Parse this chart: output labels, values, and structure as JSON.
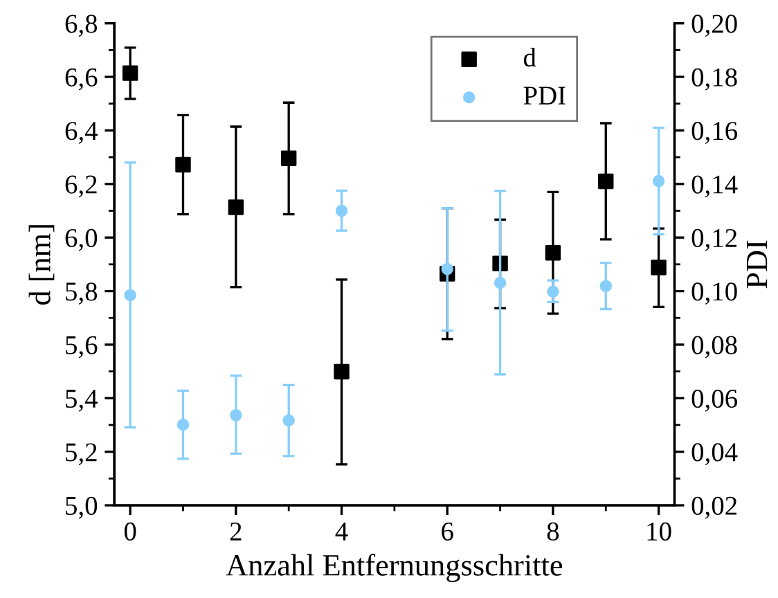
{
  "chart_data": {
    "type": "scatter",
    "xlabel": "Anzahl Entfernungsschritte",
    "ylabel": "d [nm]",
    "y2label": "PDI",
    "x": [
      0,
      1,
      2,
      3,
      4,
      6,
      7,
      8,
      9,
      10
    ],
    "series": [
      {
        "name": "d",
        "color": "#000000",
        "marker": "square",
        "values": [
          6.614,
          6.272,
          6.113,
          6.296,
          5.499,
          5.865,
          5.903,
          5.943,
          6.21,
          5.888
        ],
        "errors": [
          [
            6.518,
            6.709
          ],
          [
            6.087,
            6.457
          ],
          [
            5.815,
            6.414
          ],
          [
            6.087,
            6.504
          ],
          [
            5.153,
            5.843
          ],
          [
            5.621,
            6.11
          ],
          [
            5.736,
            6.067
          ],
          [
            5.716,
            6.17
          ],
          [
            5.993,
            6.427
          ],
          [
            5.741,
            6.034
          ]
        ]
      },
      {
        "name": "PDI",
        "color": "#87cefa",
        "marker": "circle",
        "axis": "y2",
        "values": [
          0.0985,
          0.0501,
          0.0537,
          0.0517,
          0.13,
          0.1083,
          0.1031,
          0.0998,
          0.1019,
          0.1411
        ],
        "errors": [
          [
            0.0491,
            0.148
          ],
          [
            0.0374,
            0.0628
          ],
          [
            0.0393,
            0.0684
          ],
          [
            0.0384,
            0.0649
          ],
          [
            0.1226,
            0.1375
          ],
          [
            0.0852,
            0.131
          ],
          [
            0.0689,
            0.1374
          ],
          [
            0.0959,
            0.104
          ],
          [
            0.0933,
            0.1105
          ],
          [
            0.1212,
            0.161
          ]
        ]
      }
    ],
    "xlim": [
      -0.3,
      10.3
    ],
    "xticks": [
      0,
      2,
      4,
      6,
      8,
      10
    ],
    "ylim": [
      5.0,
      6.8
    ],
    "yticks": [
      {
        "value": 5.0,
        "label": "5,0"
      },
      {
        "value": 5.2,
        "label": "5,2"
      },
      {
        "value": 5.4,
        "label": "5,4"
      },
      {
        "value": 5.6,
        "label": "5,6"
      },
      {
        "value": 5.8,
        "label": "5,8"
      },
      {
        "value": 6.0,
        "label": "6,0"
      },
      {
        "value": 6.2,
        "label": "6,2"
      },
      {
        "value": 6.4,
        "label": "6,4"
      },
      {
        "value": 6.6,
        "label": "6,6"
      },
      {
        "value": 6.8,
        "label": "6,8"
      }
    ],
    "y2lim": [
      0.02,
      0.2
    ],
    "y2ticks": [
      {
        "value": 0.02,
        "label": "0,02"
      },
      {
        "value": 0.04,
        "label": "0,04"
      },
      {
        "value": 0.06,
        "label": "0,06"
      },
      {
        "value": 0.08,
        "label": "0,08"
      },
      {
        "value": 0.1,
        "label": "0,10"
      },
      {
        "value": 0.12,
        "label": "0,12"
      },
      {
        "value": 0.14,
        "label": "0,14"
      },
      {
        "value": 0.16,
        "label": "0,16"
      },
      {
        "value": 0.18,
        "label": "0,18"
      },
      {
        "value": 0.2,
        "label": "0,20"
      }
    ],
    "grid": false,
    "legend": "top right"
  }
}
